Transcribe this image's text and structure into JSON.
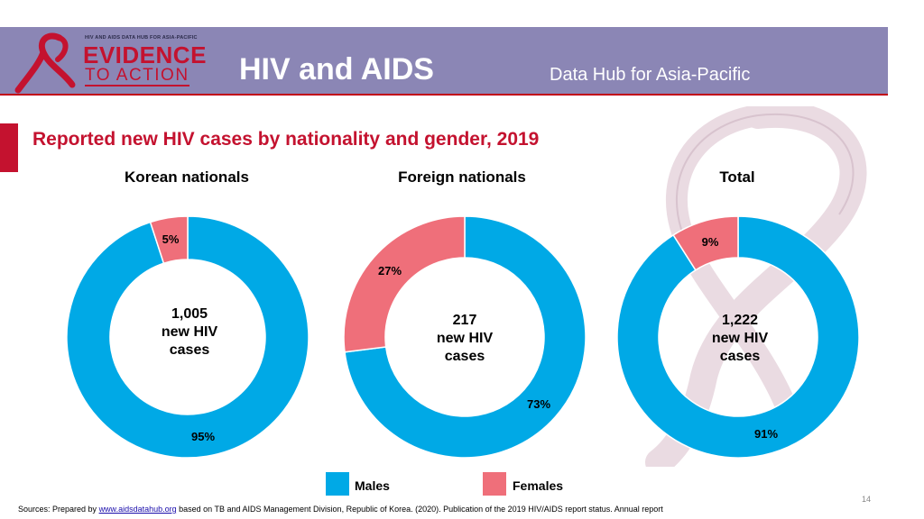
{
  "header": {
    "logo_small": "HIV AND AIDS DATA HUB FOR ASIA-PACIFIC",
    "logo_line1": "EVIDENCE",
    "logo_line2": "TO ACTION",
    "title": "HIV and AIDS",
    "subtitle": "Data Hub for Asia-Pacific"
  },
  "colors": {
    "males": "#00a9e6",
    "females": "#ef6f7a",
    "accent": "#c4122f",
    "header": "#8b86b5"
  },
  "chart_data": {
    "type": "pie",
    "variant": "donut",
    "title": "Reported new HIV cases by nationality and gender, 2019",
    "legend": [
      "Males",
      "Females"
    ],
    "legend_position": "bottom",
    "charts": [
      {
        "name": "Korean nationals",
        "center": [
          "1,005",
          "new HIV",
          "cases"
        ],
        "males": 95,
        "females": 5,
        "males_label": "95%",
        "females_label": "5%"
      },
      {
        "name": "Foreign nationals",
        "center": [
          "217",
          "new HIV",
          "cases"
        ],
        "males": 73,
        "females": 27,
        "males_label": "73%",
        "females_label": "27%"
      },
      {
        "name": "Total",
        "center": [
          "1,222",
          "new HIV",
          "cases"
        ],
        "males": 91,
        "females": 9,
        "males_label": "91%",
        "females_label": "9%"
      }
    ]
  },
  "footer": {
    "page_number": "14",
    "sources_prefix": "Sources: Prepared by ",
    "sources_link": "www.aidsdatahub.org",
    "sources_suffix": " based on TB and AIDS Management Division, Republic of Korea. (2020). Publication of the 2019 HIV/AIDS report status. Annual report"
  }
}
